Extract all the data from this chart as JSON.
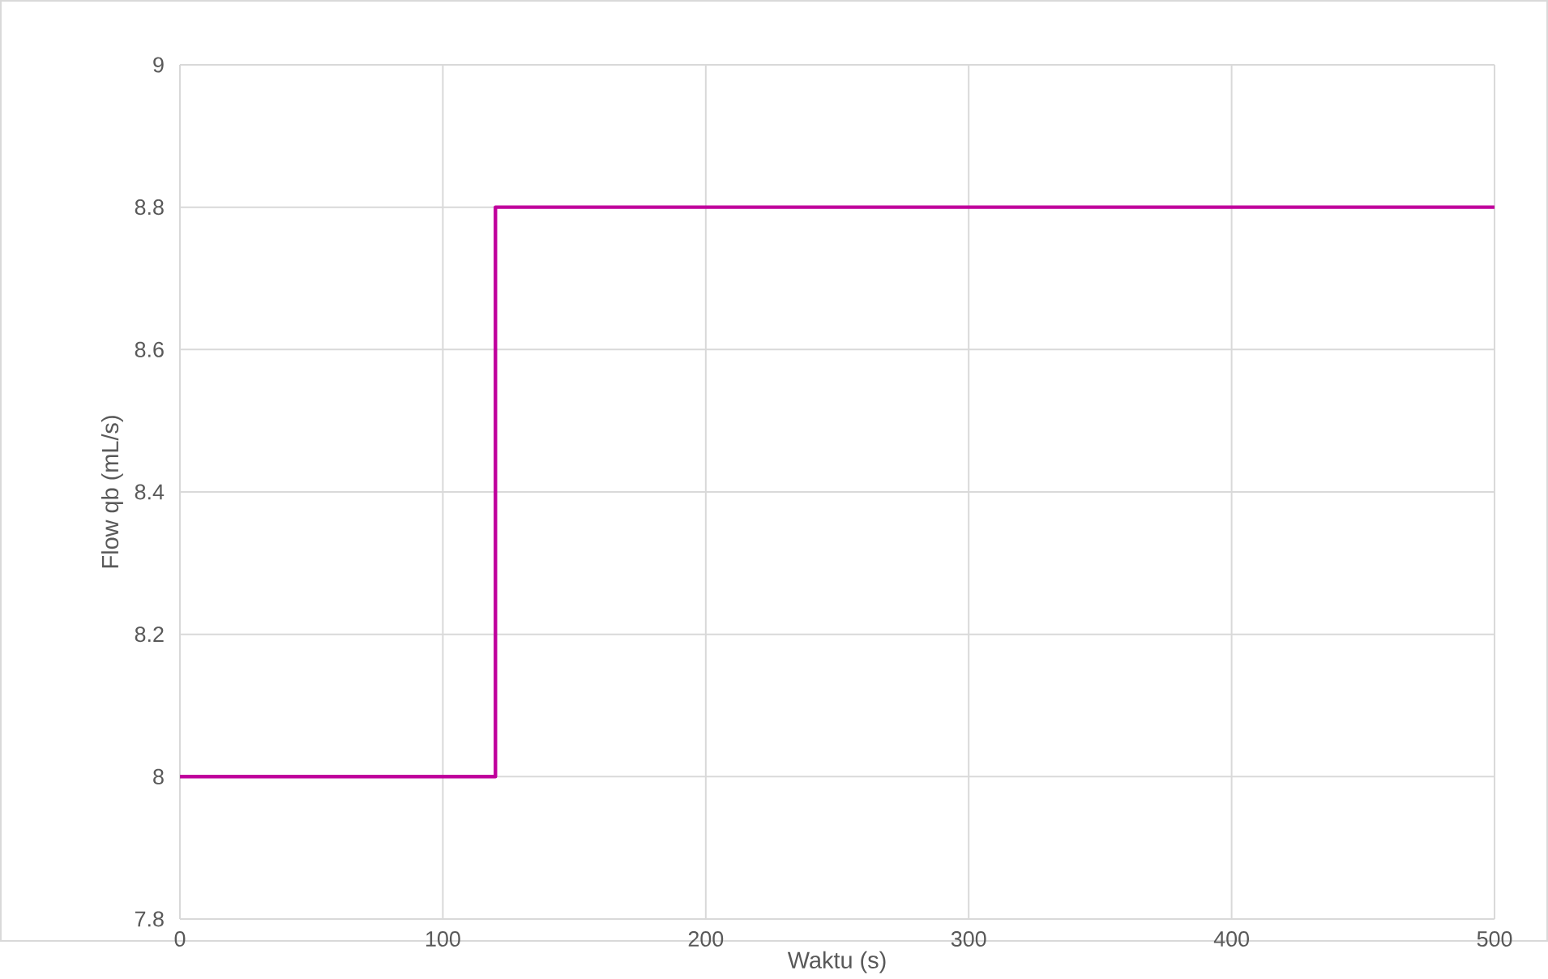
{
  "chart_data": {
    "type": "line",
    "xlabel": "Waktu (s)",
    "ylabel": "Flow qb (mL/s)",
    "x": [
      0,
      120,
      120,
      500
    ],
    "series": [
      {
        "color": "#c0009c",
        "values": [
          8,
          8,
          8.8,
          8.8
        ]
      }
    ],
    "xlim": [
      0,
      500
    ],
    "xticks": [
      0,
      100,
      200,
      300,
      400,
      500
    ],
    "ylim": [
      7.8,
      9
    ],
    "yticks": [
      7.8,
      8,
      8.2,
      8.4,
      8.6,
      8.8,
      9
    ],
    "grid": true,
    "marker": "none",
    "line_style": "solid"
  }
}
